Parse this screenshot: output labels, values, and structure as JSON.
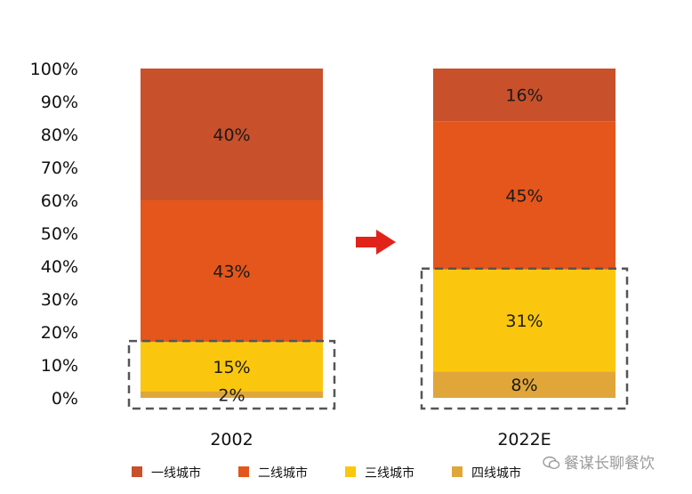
{
  "chart_data": {
    "type": "bar",
    "stacked": true,
    "normalized_percent": true,
    "categories": [
      "2002",
      "2022E"
    ],
    "series": [
      {
        "name": "四线城市",
        "values": [
          2,
          8
        ],
        "color": "#E0A63A"
      },
      {
        "name": "三线城市",
        "values": [
          15,
          31
        ],
        "color": "#FAC70E"
      },
      {
        "name": "二线城市",
        "values": [
          43,
          45
        ],
        "color": "#E4561B"
      },
      {
        "name": "一线城市",
        "values": [
          40,
          16
        ],
        "color": "#C8502A"
      }
    ],
    "y_ticks": [
      "0%",
      "10%",
      "20%",
      "30%",
      "40%",
      "50%",
      "60%",
      "70%",
      "80%",
      "90%",
      "100%"
    ],
    "ylim": [
      0,
      100
    ],
    "legend": {
      "position": "bottom",
      "entries": [
        {
          "label": "一线城市",
          "color": "#C8502A"
        },
        {
          "label": "二线城市",
          "color": "#E4561B"
        },
        {
          "label": "三线城市",
          "color": "#FAC70E"
        },
        {
          "label": "四线城市",
          "color": "#E0A63A"
        }
      ]
    },
    "annotations": {
      "arrow_color": "#E2231A",
      "dashed_boxes": [
        {
          "category": "2002",
          "covers_series": [
            "四线城市",
            "三线城市"
          ]
        },
        {
          "category": "2022E",
          "covers_series": [
            "四线城市",
            "三线城市"
          ]
        }
      ]
    }
  },
  "watermark": "餐谋长聊餐饮"
}
